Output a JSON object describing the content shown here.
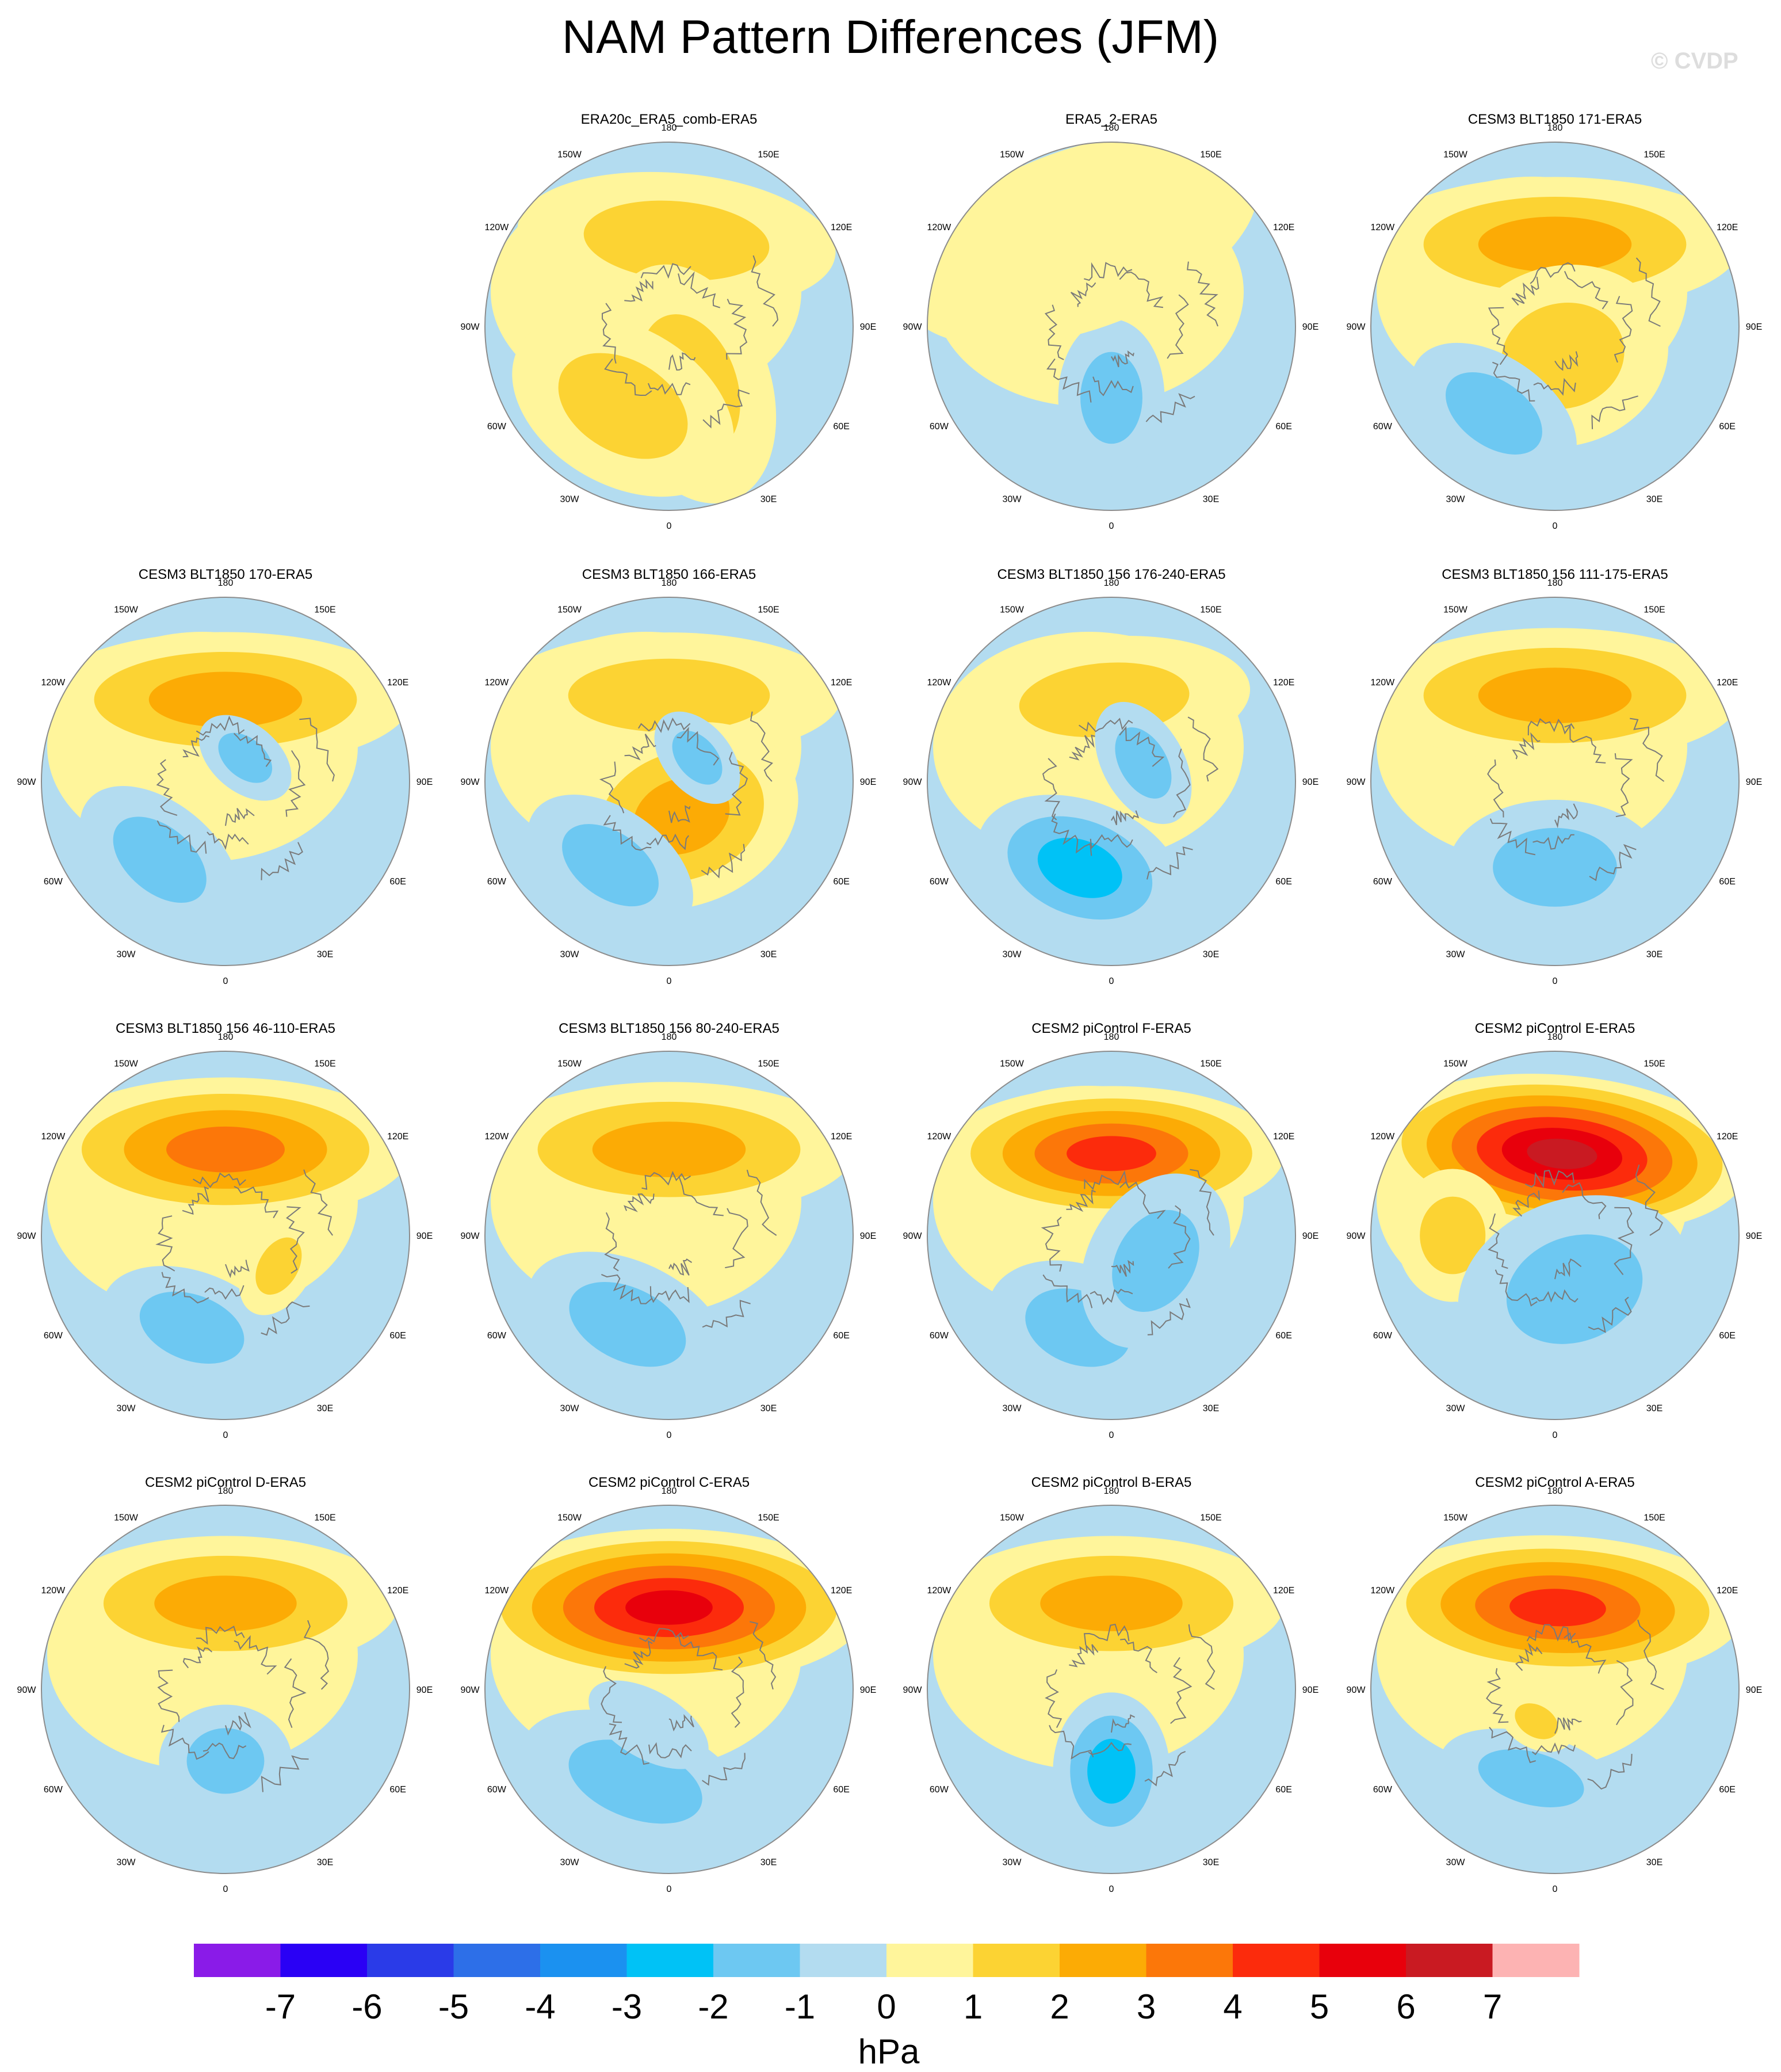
{
  "title": "NAM Pattern Differences (JFM)",
  "watermark": "© CVDP",
  "colors": {
    "ocean_negative_small": "#b3dcf0",
    "positive_small": "#fff59b",
    "coast": "#7a7a7a"
  },
  "longitude_labels": [
    "180",
    "150E",
    "120E",
    "90E",
    "60E",
    "30E",
    "0",
    "30W",
    "60W",
    "90W",
    "120W",
    "150W"
  ],
  "panels": [
    {
      "title": "ERA20c_ERA5_comb-ERA5",
      "blobs": [
        {
          "lon": 175,
          "lat": 48,
          "rx": 60,
          "ry": 30,
          "levels": [
            1,
            2
          ]
        },
        {
          "lon": 20,
          "lat": 60,
          "rx": 30,
          "ry": 55,
          "levels": [
            1,
            2
          ]
        },
        {
          "lon": 330,
          "lat": 45,
          "rx": 45,
          "ry": 35,
          "levels": [
            1,
            2
          ]
        }
      ]
    },
    {
      "title": "ERA5_2-ERA5",
      "blobs": [
        {
          "lon": 0,
          "lat": 55,
          "rx": 20,
          "ry": 35,
          "levels": [
            -1,
            -2
          ]
        },
        {
          "lon": 200,
          "lat": 45,
          "rx": 70,
          "ry": 40,
          "levels": [
            1
          ]
        }
      ]
    },
    {
      "title": "CESM3 BLT1850 171-ERA5",
      "blobs": [
        {
          "lon": 180,
          "lat": 50,
          "rx": 70,
          "ry": 30,
          "levels": [
            1,
            2,
            3
          ]
        },
        {
          "lon": 15,
          "lat": 75,
          "rx": 40,
          "ry": 40,
          "levels": [
            1,
            2
          ]
        },
        {
          "lon": 325,
          "lat": 38,
          "rx": 35,
          "ry": 25,
          "levels": [
            -1,
            -2
          ]
        }
      ]
    },
    {
      "title": "CESM3 BLT1850 170-ERA5",
      "blobs": [
        {
          "lon": 180,
          "lat": 50,
          "rx": 70,
          "ry": 30,
          "levels": [
            1,
            2,
            3
          ]
        },
        {
          "lon": 320,
          "lat": 40,
          "rx": 35,
          "ry": 25,
          "levels": [
            -1,
            -2
          ]
        },
        {
          "lon": 140,
          "lat": 75,
          "rx": 20,
          "ry": 15,
          "levels": [
            -1,
            -2
          ]
        }
      ]
    },
    {
      "title": "CESM3 BLT1850 166-ERA5",
      "blobs": [
        {
          "lon": 180,
          "lat": 48,
          "rx": 65,
          "ry": 28,
          "levels": [
            1,
            2
          ]
        },
        {
          "lon": 20,
          "lat": 72,
          "rx": 45,
          "ry": 40,
          "levels": [
            1,
            2,
            3
          ]
        },
        {
          "lon": 325,
          "lat": 40,
          "rx": 35,
          "ry": 25,
          "levels": [
            -1,
            -2
          ]
        },
        {
          "lon": 130,
          "lat": 72,
          "rx": 20,
          "ry": 15,
          "levels": [
            -1,
            -2
          ]
        }
      ]
    },
    {
      "title": "CESM3 BLT1850 156 176-240-ERA5",
      "blobs": [
        {
          "lon": 185,
          "lat": 50,
          "rx": 55,
          "ry": 28,
          "levels": [
            1,
            2
          ]
        },
        {
          "lon": 340,
          "lat": 45,
          "rx": 40,
          "ry": 30,
          "levels": [
            -1,
            -2,
            -3
          ]
        },
        {
          "lon": 120,
          "lat": 72,
          "rx": 25,
          "ry": 18,
          "levels": [
            -1,
            -2
          ]
        }
      ]
    },
    {
      "title": "CESM3 BLT1850 156 111-175-ERA5",
      "blobs": [
        {
          "lon": 180,
          "lat": 48,
          "rx": 70,
          "ry": 30,
          "levels": [
            1,
            2,
            3
          ]
        },
        {
          "lon": 0,
          "lat": 48,
          "rx": 40,
          "ry": 30,
          "levels": [
            -1,
            -2
          ]
        }
      ]
    },
    {
      "title": "CESM3 BLT1850 156 46-110-ERA5",
      "blobs": [
        {
          "lon": 180,
          "lat": 48,
          "rx": 70,
          "ry": 32,
          "levels": [
            1,
            2,
            3,
            4
          ]
        },
        {
          "lon": 340,
          "lat": 42,
          "rx": 35,
          "ry": 25,
          "levels": [
            -1,
            -2
          ]
        },
        {
          "lon": 60,
          "lat": 60,
          "rx": 20,
          "ry": 15,
          "levels": [
            1,
            2
          ]
        }
      ]
    },
    {
      "title": "CESM3 BLT1850 156 80-240-ERA5",
      "blobs": [
        {
          "lon": 180,
          "lat": 48,
          "rx": 70,
          "ry": 30,
          "levels": [
            1,
            2,
            3
          ]
        },
        {
          "lon": 335,
          "lat": 42,
          "rx": 40,
          "ry": 28,
          "levels": [
            -1,
            -2
          ]
        }
      ]
    },
    {
      "title": "CESM2 piControl F-ERA5",
      "blobs": [
        {
          "lon": 180,
          "lat": 50,
          "rx": 65,
          "ry": 30,
          "levels": [
            1,
            2,
            3,
            4,
            5
          ]
        },
        {
          "lon": 340,
          "lat": 42,
          "rx": 35,
          "ry": 28,
          "levels": [
            -1,
            -2
          ]
        },
        {
          "lon": 60,
          "lat": 65,
          "rx": 35,
          "ry": 30,
          "levels": [
            -1,
            -2
          ]
        }
      ]
    },
    {
      "title": "CESM2 piControl E-ERA5",
      "blobs": [
        {
          "lon": 175,
          "lat": 50,
          "rx": 70,
          "ry": 35,
          "levels": [
            1,
            2,
            3,
            4,
            5,
            6,
            7
          ]
        },
        {
          "lon": 270,
          "lat": 40,
          "rx": 25,
          "ry": 25,
          "levels": [
            1,
            2
          ]
        },
        {
          "lon": 20,
          "lat": 62,
          "rx": 45,
          "ry": 40,
          "levels": [
            -1,
            -2
          ]
        }
      ]
    },
    {
      "title": "CESM2 piControl D-ERA5",
      "blobs": [
        {
          "lon": 180,
          "lat": 48,
          "rx": 65,
          "ry": 30,
          "levels": [
            1,
            2,
            3
          ]
        },
        {
          "lon": 0,
          "lat": 55,
          "rx": 25,
          "ry": 25,
          "levels": [
            -1,
            -2
          ]
        }
      ]
    },
    {
      "title": "CESM2 piControl C-ERA5",
      "blobs": [
        {
          "lon": 180,
          "lat": 50,
          "rx": 75,
          "ry": 35,
          "levels": [
            1,
            2,
            3,
            4,
            5,
            6
          ]
        },
        {
          "lon": 340,
          "lat": 42,
          "rx": 45,
          "ry": 28,
          "levels": [
            -1,
            -2
          ]
        },
        {
          "lon": 330,
          "lat": 70,
          "rx": 25,
          "ry": 15,
          "levels": [
            -1
          ]
        }
      ]
    },
    {
      "title": "CESM2 piControl B-ERA5",
      "blobs": [
        {
          "lon": 180,
          "lat": 48,
          "rx": 65,
          "ry": 30,
          "levels": [
            1,
            2,
            3
          ]
        },
        {
          "lon": 0,
          "lat": 50,
          "rx": 22,
          "ry": 35,
          "levels": [
            -1,
            -2,
            -3
          ]
        }
      ]
    },
    {
      "title": "CESM2 piControl A-ERA5",
      "blobs": [
        {
          "lon": 178,
          "lat": 50,
          "rx": 70,
          "ry": 32,
          "levels": [
            1,
            2,
            3,
            4,
            5
          ]
        },
        {
          "lon": 345,
          "lat": 45,
          "rx": 35,
          "ry": 20,
          "levels": [
            -1,
            -2
          ]
        },
        {
          "lon": 330,
          "lat": 72,
          "rx": 15,
          "ry": 12,
          "levels": [
            1,
            2
          ]
        }
      ]
    }
  ],
  "colorbar": {
    "label": "hPa",
    "ticks": [
      "-7",
      "-6",
      "-5",
      "-4",
      "-3",
      "-2",
      "-1",
      "0",
      "1",
      "2",
      "3",
      "4",
      "5",
      "6",
      "7"
    ],
    "colors": [
      "#8a1be8",
      "#2a00f5",
      "#2a3be8",
      "#2d6fe8",
      "#1b91f0",
      "#00c2f6",
      "#6dc8f2",
      "#b3dcf0",
      "#fff59b",
      "#fcd333",
      "#fcab05",
      "#fc7709",
      "#fc2b0c",
      "#e8000c",
      "#c91a22",
      "#fdb3b3"
    ]
  }
}
